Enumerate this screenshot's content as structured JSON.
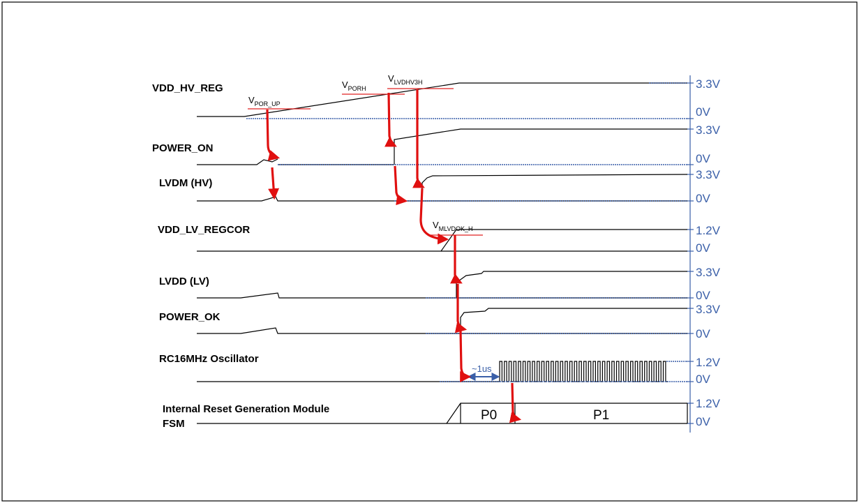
{
  "signals": [
    {
      "id": "vdd_hv_reg",
      "label": "VDD_HV_REG",
      "high": "3.3V",
      "low": "0V"
    },
    {
      "id": "power_on",
      "label": "POWER_ON",
      "high": "3.3V",
      "low": "0V"
    },
    {
      "id": "lvdm_hv",
      "label": "LVDM (HV)",
      "high": "3.3V",
      "low": "0V"
    },
    {
      "id": "vdd_lv_regcor",
      "label": "VDD_LV_REGCOR",
      "high": "1.2V",
      "low": "0V"
    },
    {
      "id": "lvdd_lv",
      "label": "LVDD (LV)",
      "high": "3.3V",
      "low": "0V"
    },
    {
      "id": "power_ok",
      "label": "POWER_OK",
      "high": "3.3V",
      "low": "0V"
    },
    {
      "id": "rc16mhz",
      "label": "RC16MHz Oscillator",
      "high": "1.2V",
      "low": "0V"
    },
    {
      "id": "rgm_fsm",
      "label_line1": "Internal Reset Generation Module",
      "label_line2": "FSM",
      "high": "1.2V",
      "low": "0V"
    }
  ],
  "thresholds": {
    "por_up": {
      "main": "V",
      "sub": "POR_UP"
    },
    "porh": {
      "main": "V",
      "sub": "PORH"
    },
    "lvdhv3h": {
      "main": "V",
      "sub": "LVDHV3H"
    },
    "mlvdok_h": {
      "main": "V",
      "sub": "MLVDOK_H"
    }
  },
  "oscillator_delay": "~1us",
  "fsm_phases": [
    "P0",
    "P1"
  ],
  "colors": {
    "arrow": "#e01010",
    "threshold": "#e02020",
    "voltage_text": "#3a5fa8",
    "waveform": "#000000"
  }
}
